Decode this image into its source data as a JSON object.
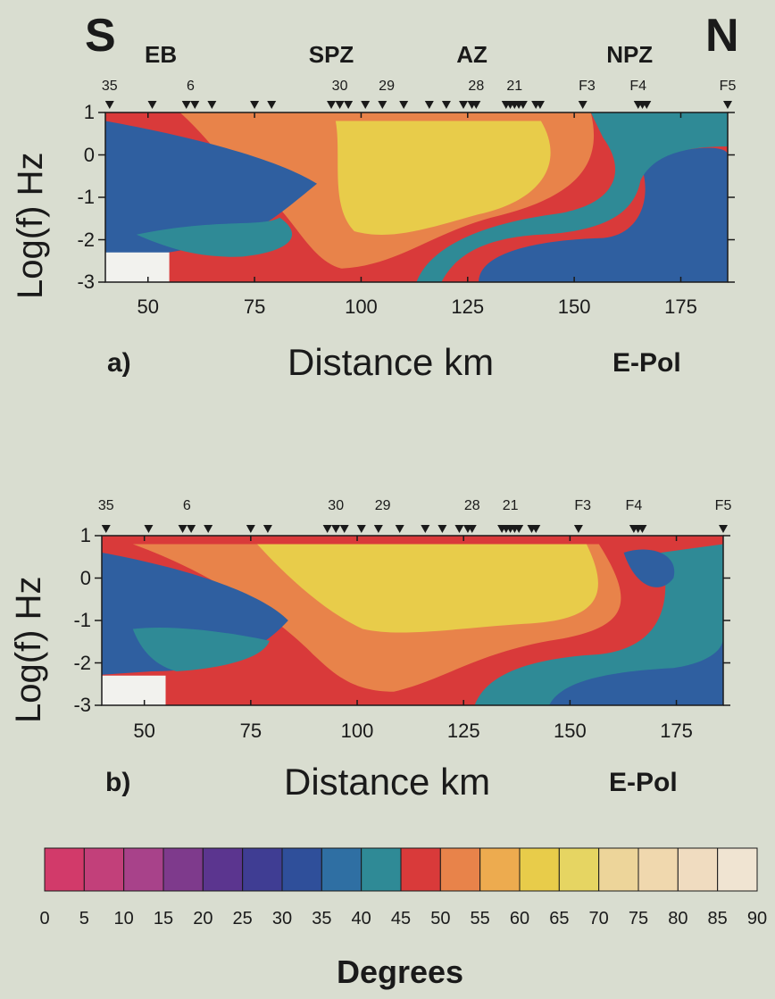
{
  "corner_left": "S",
  "corner_right": "N",
  "regions": [
    {
      "label": "EB",
      "km": 53
    },
    {
      "label": "SPZ",
      "km": 93
    },
    {
      "label": "AZ",
      "km": 126
    },
    {
      "label": "NPZ",
      "km": 163
    }
  ],
  "colorbar": {
    "title": "Degrees",
    "ticks": [
      "0",
      "5",
      "10",
      "15",
      "20",
      "25",
      "30",
      "35",
      "40",
      "45",
      "50",
      "55",
      "60",
      "65",
      "70",
      "75",
      "80",
      "85",
      "90"
    ],
    "colors": [
      "#d23a6a",
      "#c2407a",
      "#a8428a",
      "#7e3a8c",
      "#5b358f",
      "#3f3d93",
      "#2f4f9a",
      "#2f6fa3",
      "#2f8a96",
      "#d93a3a",
      "#e8834a",
      "#edab4f",
      "#e8cc4a",
      "#e6d562",
      "#edd59a",
      "#f0d8ae",
      "#f0dcc0",
      "#f0e4d2"
    ]
  },
  "chart_data": [
    {
      "type": "heatmap",
      "panel_label": "a)",
      "polarization": "E-Pol",
      "xlabel": "Distance km",
      "ylabel": "Log(f) Hz",
      "xlim": [
        40,
        186
      ],
      "ylim": [
        -3,
        1
      ],
      "x_ticks": [
        "50",
        "75",
        "100",
        "125",
        "150",
        "175"
      ],
      "y_ticks": [
        "1",
        "0",
        "-1",
        "-2",
        "-3"
      ],
      "station_labels": [
        {
          "label": "35",
          "km": 41
        },
        {
          "label": "6",
          "km": 60
        },
        {
          "label": "30",
          "km": 95
        },
        {
          "label": "29",
          "km": 106
        },
        {
          "label": "28",
          "km": 127
        },
        {
          "label": "21",
          "km": 136
        },
        {
          "label": "F3",
          "km": 153
        },
        {
          "label": "F4",
          "km": 165
        },
        {
          "label": "F5",
          "km": 186
        }
      ],
      "station_km": [
        41,
        51,
        59,
        61,
        65,
        75,
        79,
        93,
        95,
        97,
        101,
        105,
        110,
        116,
        120,
        124,
        126,
        127,
        134,
        135,
        136,
        137,
        138,
        141,
        142,
        152,
        165,
        166,
        167,
        186
      ],
      "blank_region": {
        "x": [
          40,
          55
        ],
        "y": [
          -3,
          -2.3
        ]
      },
      "contour_bands": [
        {
          "degrees": "50-55",
          "color": "#d93a3a"
        },
        {
          "degrees": "55-60",
          "color": "#e8834a"
        },
        {
          "degrees": "60-70",
          "color": "#e8cc4a"
        },
        {
          "degrees": "30-40",
          "color": "#2f5fa0"
        },
        {
          "degrees": "40-45",
          "color": "#2f8a96"
        }
      ]
    },
    {
      "type": "heatmap",
      "panel_label": "b)",
      "polarization": "E-Pol",
      "xlabel": "Distance km",
      "ylabel": "Log(f) Hz",
      "xlim": [
        40,
        186
      ],
      "ylim": [
        -3,
        1
      ],
      "x_ticks": [
        "50",
        "75",
        "100",
        "125",
        "150",
        "175"
      ],
      "y_ticks": [
        "1",
        "0",
        "-1",
        "-2",
        "-3"
      ],
      "station_labels": [
        {
          "label": "35",
          "km": 41
        },
        {
          "label": "6",
          "km": 60
        },
        {
          "label": "30",
          "km": 95
        },
        {
          "label": "29",
          "km": 106
        },
        {
          "label": "28",
          "km": 127
        },
        {
          "label": "21",
          "km": 136
        },
        {
          "label": "F3",
          "km": 153
        },
        {
          "label": "F4",
          "km": 165
        },
        {
          "label": "F5",
          "km": 186
        }
      ],
      "station_km": [
        41,
        51,
        59,
        61,
        65,
        75,
        79,
        93,
        95,
        97,
        101,
        105,
        110,
        116,
        120,
        124,
        126,
        127,
        134,
        135,
        136,
        137,
        138,
        141,
        142,
        152,
        165,
        166,
        167,
        186
      ],
      "blank_region": {
        "x": [
          40,
          55
        ],
        "y": [
          -3,
          -2.3
        ]
      },
      "contour_bands": [
        {
          "degrees": "50-55",
          "color": "#d93a3a"
        },
        {
          "degrees": "55-60",
          "color": "#e8834a"
        },
        {
          "degrees": "60-70",
          "color": "#e8cc4a"
        },
        {
          "degrees": "30-40",
          "color": "#2f5fa0"
        },
        {
          "degrees": "40-45",
          "color": "#2f8a96"
        }
      ]
    }
  ]
}
